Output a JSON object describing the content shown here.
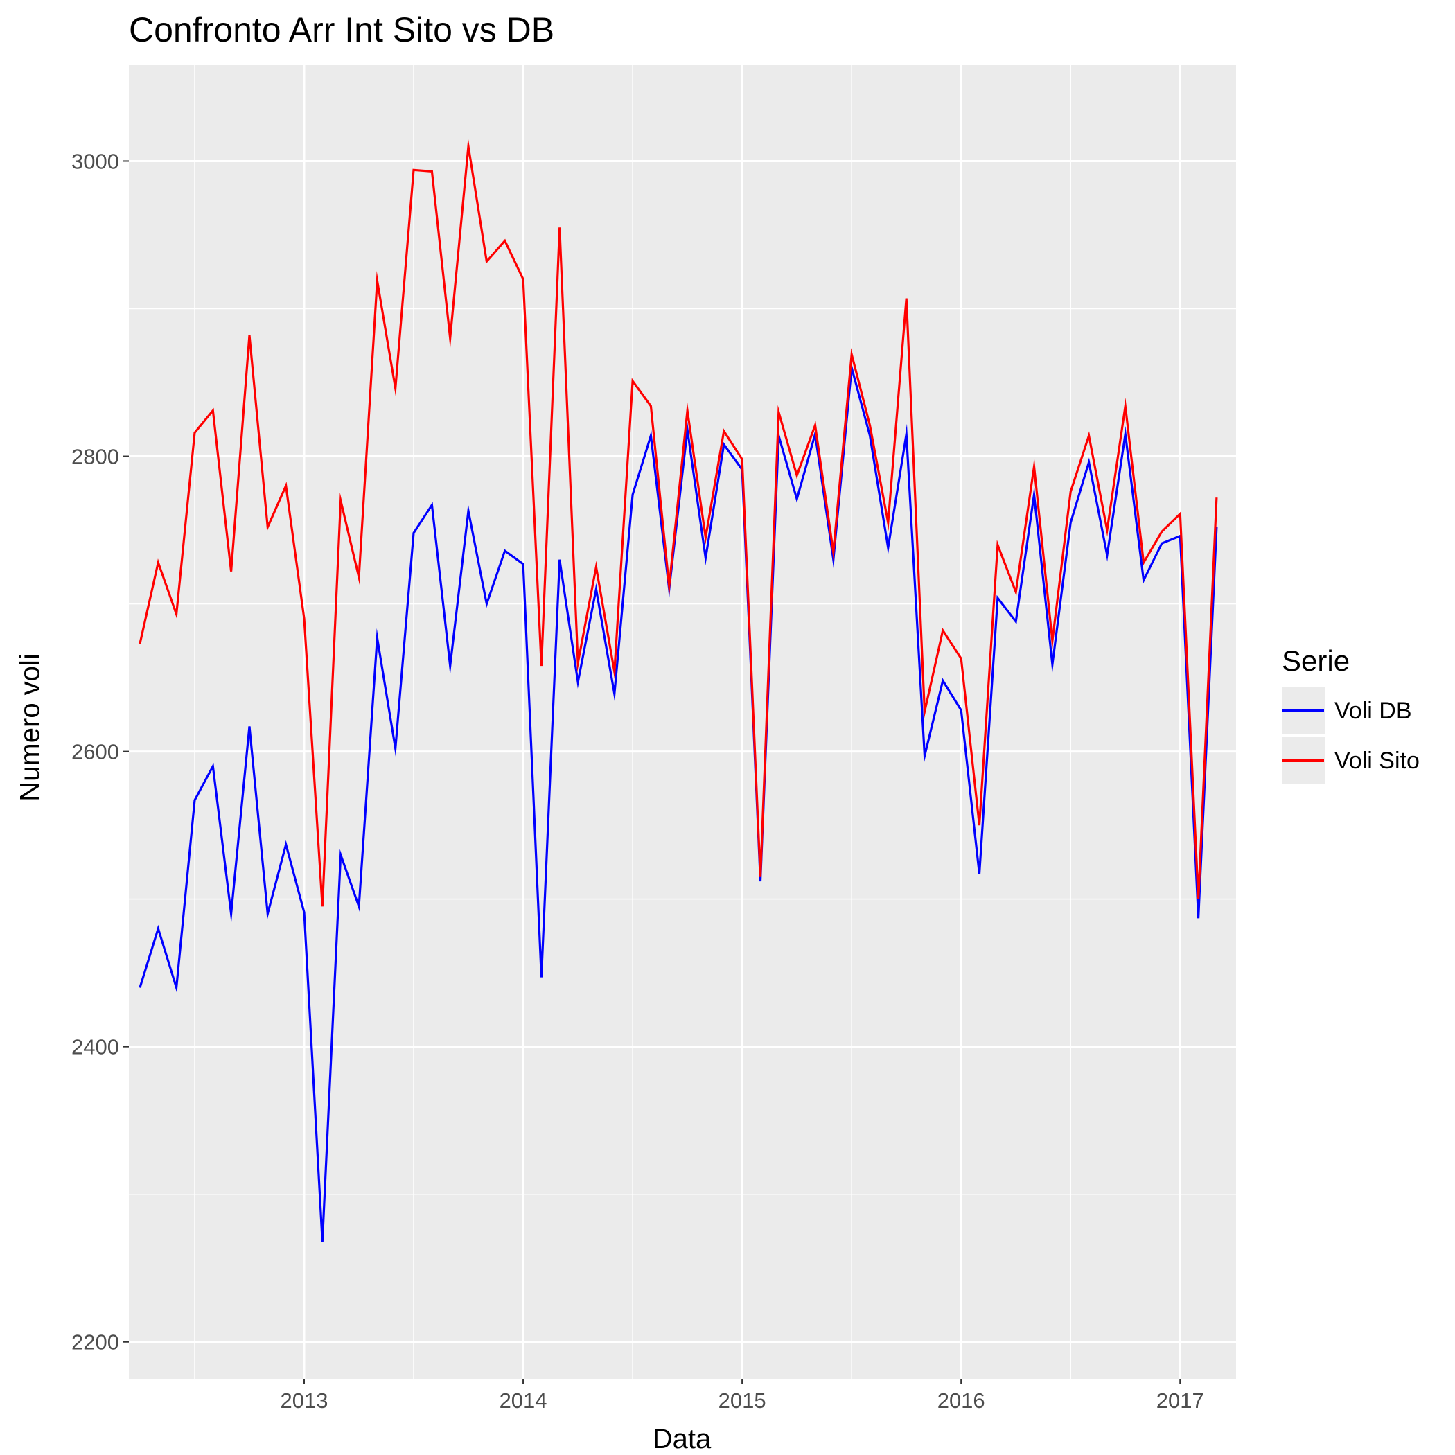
{
  "chart_data": {
    "type": "line",
    "title": "Confronto Arr Int Sito vs DB",
    "xlabel": "Data",
    "ylabel": "Numero voli",
    "legend_title": "Serie",
    "legend_position": "right",
    "grid": true,
    "ylim": [
      2175,
      3065
    ],
    "xlim": [
      "2012-03-13",
      "2017-04-03"
    ],
    "y_ticks": [
      2200,
      2400,
      2600,
      2800,
      3000
    ],
    "x_ticks": [
      "2013",
      "2014",
      "2015",
      "2016",
      "2017"
    ],
    "x": [
      "2012-04",
      "2012-05",
      "2012-06",
      "2012-07",
      "2012-08",
      "2012-09",
      "2012-10",
      "2012-11",
      "2012-12",
      "2013-01",
      "2013-02",
      "2013-03",
      "2013-04",
      "2013-05",
      "2013-06",
      "2013-07",
      "2013-08",
      "2013-09",
      "2013-10",
      "2013-11",
      "2013-12",
      "2014-01",
      "2014-02",
      "2014-03",
      "2014-04",
      "2014-05",
      "2014-06",
      "2014-07",
      "2014-08",
      "2014-09",
      "2014-10",
      "2014-11",
      "2014-12",
      "2015-01",
      "2015-02",
      "2015-03",
      "2015-04",
      "2015-05",
      "2015-06",
      "2015-07",
      "2015-08",
      "2015-09",
      "2015-10",
      "2015-11",
      "2015-12",
      "2016-01",
      "2016-02",
      "2016-03",
      "2016-04",
      "2016-05",
      "2016-06",
      "2016-07",
      "2016-08",
      "2016-09",
      "2016-10",
      "2016-11",
      "2016-12",
      "2017-01",
      "2017-02",
      "2017-03"
    ],
    "series": [
      {
        "name": "Voli DB",
        "color": "#0000ff",
        "values": [
          2440,
          2480,
          2440,
          2567,
          2590,
          2490,
          2617,
          2490,
          2537,
          2491,
          2268,
          2530,
          2495,
          2677,
          2602,
          2748,
          2767,
          2658,
          2763,
          2700,
          2736,
          2727,
          2447,
          2730,
          2647,
          2710,
          2639,
          2774,
          2814,
          2710,
          2818,
          2731,
          2808,
          2791,
          2512,
          2814,
          2771,
          2815,
          2730,
          2860,
          2814,
          2738,
          2815,
          2597,
          2648,
          2628,
          2517,
          2704,
          2688,
          2774,
          2659,
          2755,
          2796,
          2733,
          2815,
          2716,
          2741,
          2746,
          2487,
          2752
        ]
      },
      {
        "name": "Voli Sito",
        "color": "#ff0000",
        "values": [
          2673,
          2728,
          2693,
          2816,
          2831,
          2722,
          2882,
          2752,
          2780,
          2690,
          2495,
          2770,
          2718,
          2919,
          2846,
          2994,
          2993,
          2880,
          3010,
          2932,
          2946,
          2920,
          2658,
          2955,
          2660,
          2725,
          2654,
          2851,
          2834,
          2712,
          2831,
          2745,
          2817,
          2798,
          2515,
          2830,
          2787,
          2821,
          2735,
          2869,
          2821,
          2755,
          2907,
          2627,
          2682,
          2663,
          2550,
          2740,
          2708,
          2793,
          2675,
          2776,
          2814,
          2750,
          2834,
          2728,
          2749,
          2761,
          2500,
          2772
        ]
      }
    ]
  }
}
